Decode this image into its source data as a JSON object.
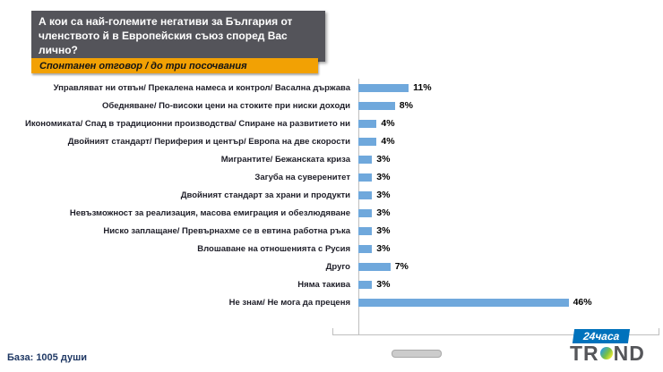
{
  "header": {
    "title": "А кои са най-големите негативи за България от членството й в Европейския съюз според Вас лично?",
    "subtitle": "Спонтанен отговор / до три посочвания"
  },
  "chart_data": {
    "type": "bar",
    "orientation": "horizontal",
    "categories": [
      "Управляват ни отвън/ Прекалена намеса и контрол/ Васална държава",
      "Обедняване/ По-високи цени на стоките при ниски доходи",
      "Икономиката/ Спад в традиционни производства/ Спиране на развитието ни",
      "Двойният стандарт/ Периферия и център/ Европа на две скорости",
      "Мигрантите/ Бежанската криза",
      "Загуба на суверенитет",
      "Двойният стандарт за храни и продукти",
      "Невъзможност за реализация, масова емиграция и обезлюдяване",
      "Ниско заплащане/ Превърнахме се в евтина работна ръка",
      "Влошаване на отношенията с Русия",
      "Друго",
      "Няма такива",
      "Не знам/ Не мога да преценя"
    ],
    "values": [
      11,
      8,
      4,
      4,
      3,
      3,
      3,
      3,
      3,
      3,
      7,
      3,
      46
    ],
    "value_labels": [
      "11%",
      "8%",
      "4%",
      "4%",
      "3%",
      "3%",
      "3%",
      "3%",
      "3%",
      "3%",
      "7%",
      "3%",
      "46%"
    ],
    "xlim": [
      0,
      50
    ],
    "grid": false,
    "legend": "none",
    "bar_color": "#6fa8dc",
    "value_label_position": "right"
  },
  "footer": {
    "base_label": "База: 1005 души"
  },
  "logos": {
    "news_logo": "24часа",
    "trend_left": "TR",
    "trend_right": "ND"
  },
  "colors": {
    "title_bg": "#54545a",
    "subtitle_bg": "#f2a104",
    "bar": "#6fa8dc",
    "footer_text": "#1f3864"
  }
}
